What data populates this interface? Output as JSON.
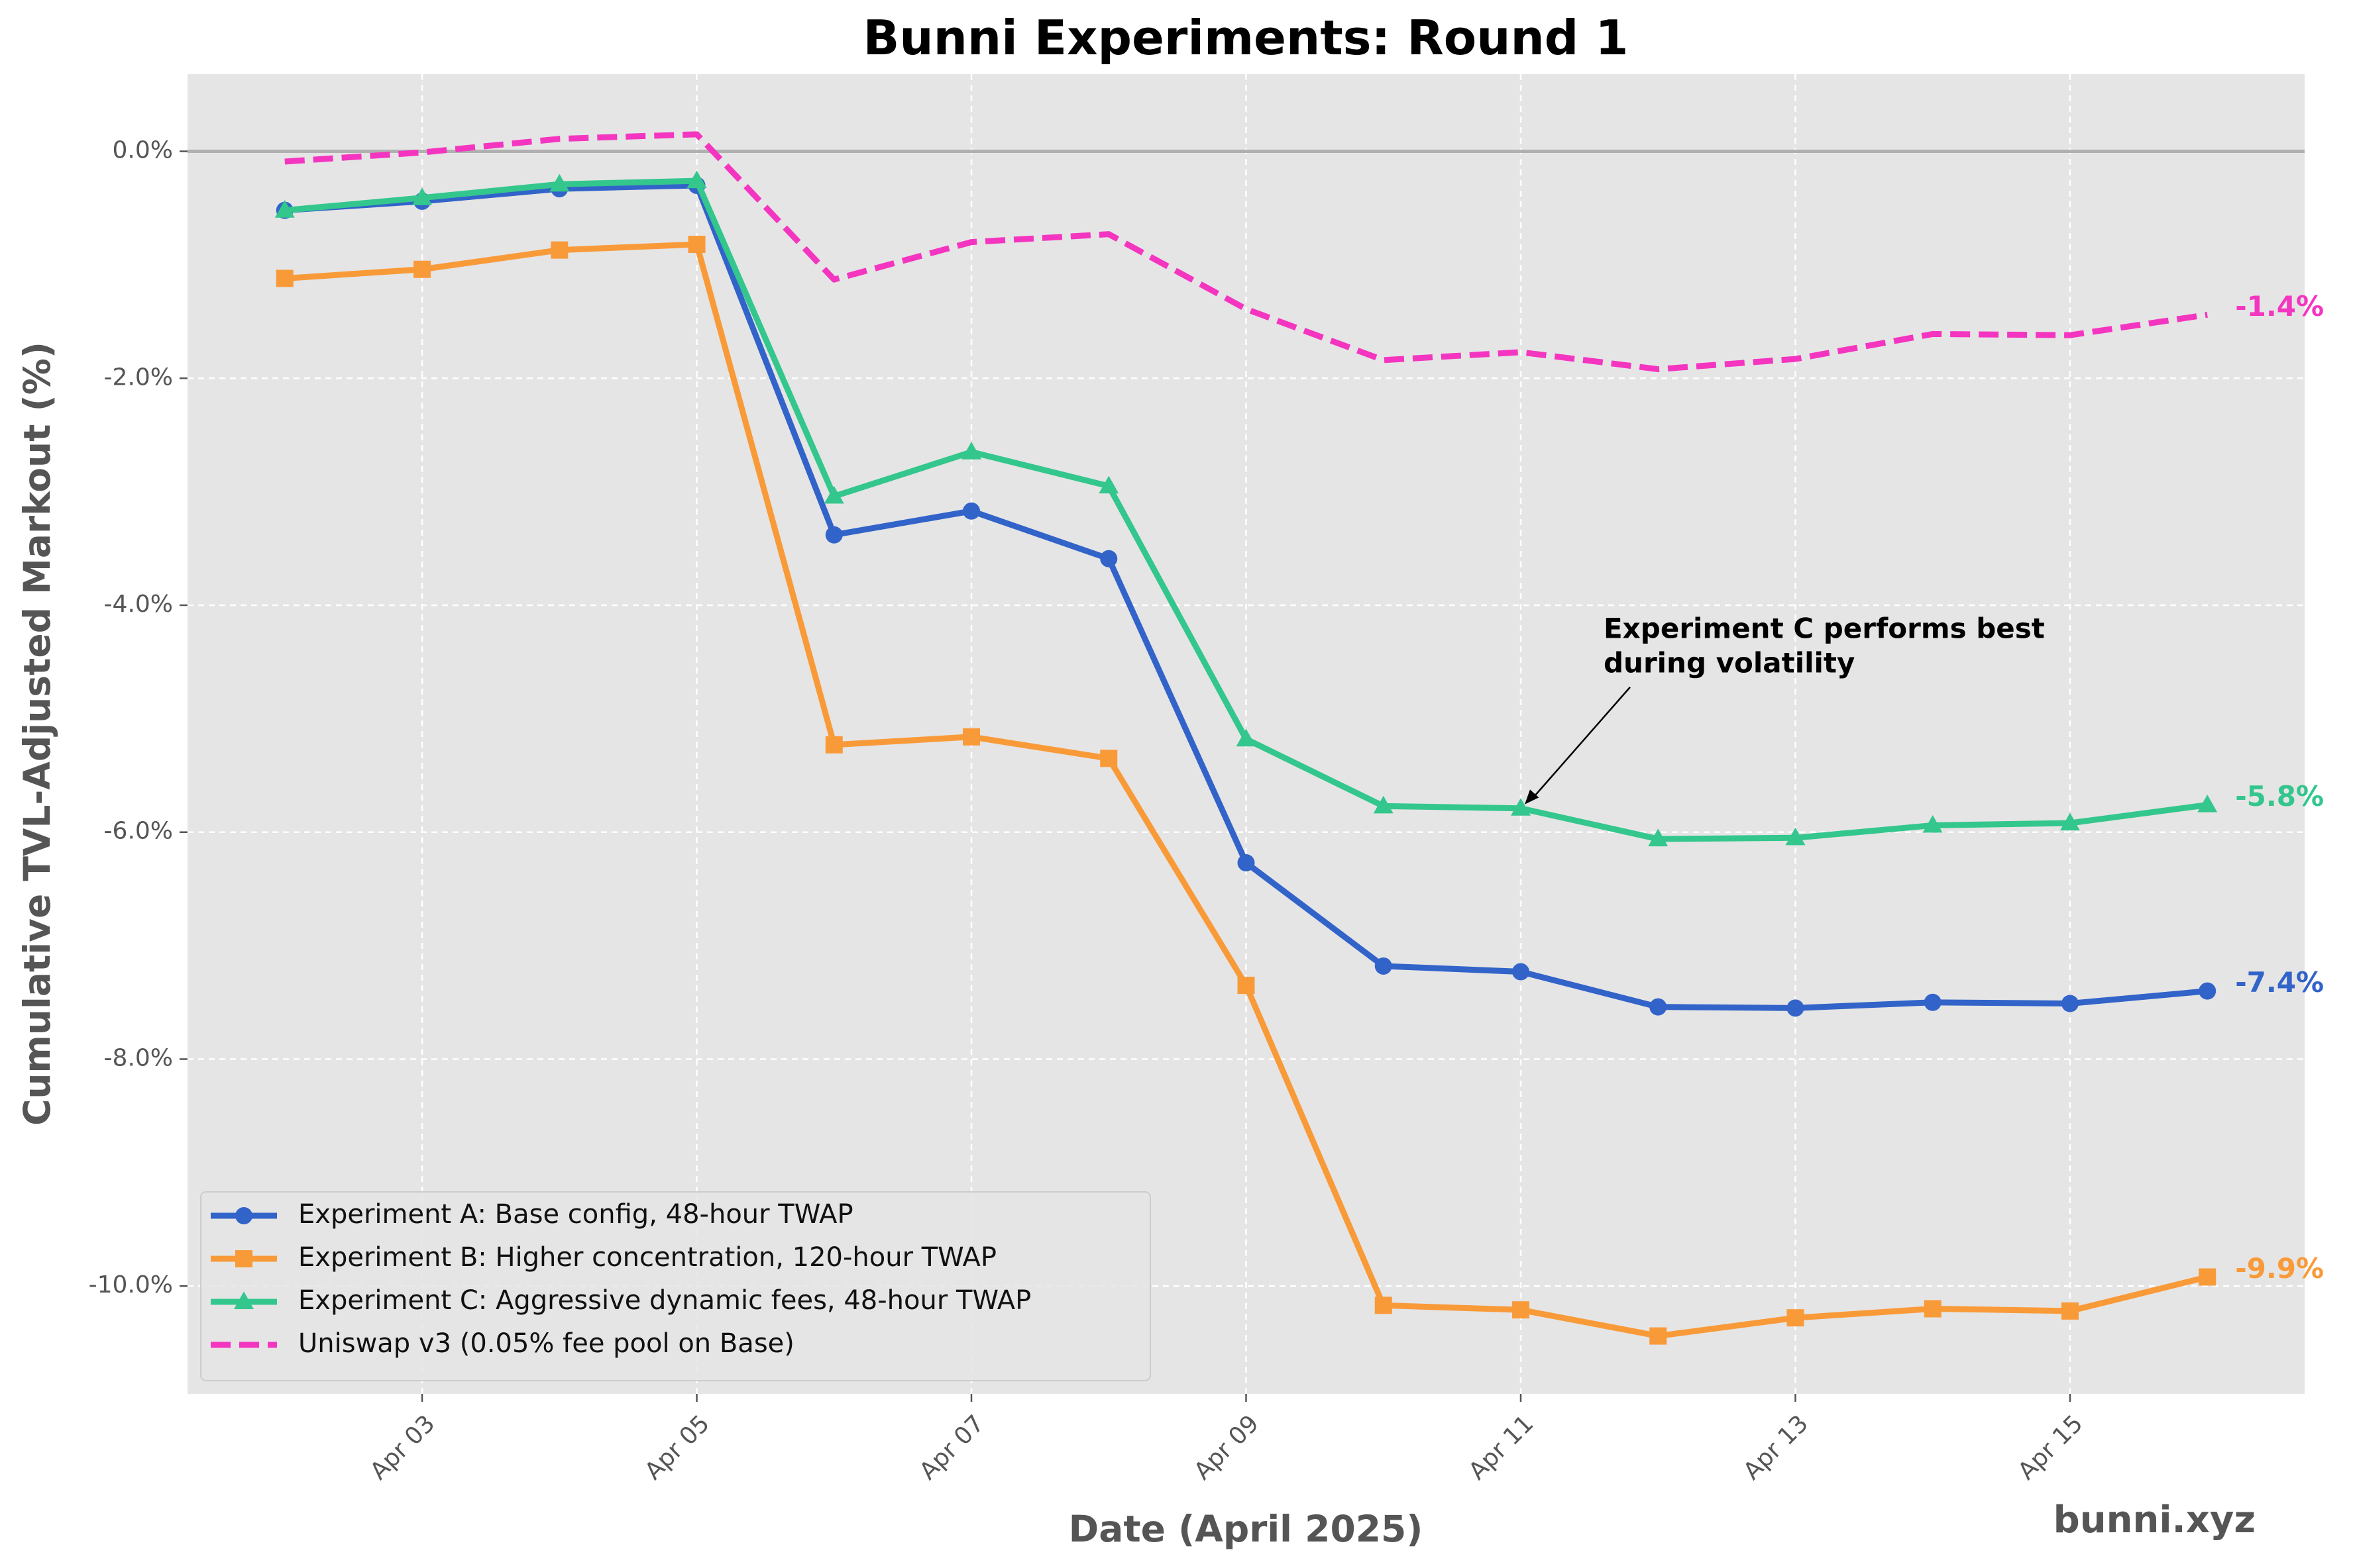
{
  "chart_data": {
    "type": "line",
    "title": "Bunni Experiments: Round 1",
    "xlabel": "Date (April 2025)",
    "ylabel": "Cumulative TVL-Adjusted Markout (%)",
    "x": [
      "2025-04-02",
      "2025-04-03",
      "2025-04-04",
      "2025-04-05",
      "2025-04-06",
      "2025-04-07",
      "2025-04-08",
      "2025-04-09",
      "2025-04-10",
      "2025-04-11",
      "2025-04-12",
      "2025-04-13",
      "2025-04-14",
      "2025-04-15",
      "2025-04-16"
    ],
    "x_ticks": [
      "Apr 03",
      "Apr 05",
      "Apr 07",
      "Apr 09",
      "Apr 11",
      "Apr 13",
      "Apr 15"
    ],
    "x_tick_dates": [
      "2025-04-03",
      "2025-04-05",
      "2025-04-07",
      "2025-04-09",
      "2025-04-11",
      "2025-04-13",
      "2025-04-15"
    ],
    "xlim": [
      "2025-04-01T07:00",
      "2025-04-16T17:00"
    ],
    "y_ticks": [
      0,
      -2,
      -4,
      -6,
      -8,
      -10
    ],
    "y_tick_labels": [
      "0.0%",
      "-2.0%",
      "-4.0%",
      "-6.0%",
      "-8.0%",
      "-10.0%"
    ],
    "ylim": [
      -10.95,
      0.68
    ],
    "grid": true,
    "background": "#e5e5e5",
    "zero_line_color": "#b0b0b0",
    "legend_position": "lower-left",
    "series": [
      {
        "name": "Experiment A: Base config, 48-hour TWAP",
        "color": "#3263c9",
        "marker": "circle",
        "dash": "solid",
        "values": [
          -0.52,
          -0.44,
          -0.33,
          -0.3,
          -3.38,
          -3.17,
          -3.59,
          -6.27,
          -7.18,
          -7.23,
          -7.54,
          -7.55,
          -7.5,
          -7.51,
          -7.4
        ],
        "end_label": "-7.4%"
      },
      {
        "name": "Experiment B: Higher concentration, 120-hour TWAP",
        "color": "#f99a39",
        "marker": "square",
        "dash": "solid",
        "values": [
          -1.12,
          -1.04,
          -0.87,
          -0.82,
          -5.23,
          -5.16,
          -5.35,
          -7.35,
          -10.17,
          -10.21,
          -10.44,
          -10.28,
          -10.2,
          -10.22,
          -9.92
        ],
        "end_label": "-9.9%"
      },
      {
        "name": "Experiment C: Aggressive dynamic fees, 48-hour TWAP",
        "color": "#33c68d",
        "marker": "triangle",
        "dash": "solid",
        "values": [
          -0.52,
          -0.41,
          -0.29,
          -0.26,
          -3.04,
          -2.65,
          -2.95,
          -5.18,
          -5.77,
          -5.79,
          -6.06,
          -6.05,
          -5.94,
          -5.92,
          -5.76
        ],
        "end_label": "-5.8%"
      },
      {
        "name": "Uniswap v3 (0.05% fee pool on Base)",
        "color": "#f435c0",
        "marker": "none",
        "dash": "dashed",
        "values": [
          -0.09,
          -0.01,
          0.11,
          0.15,
          -1.13,
          -0.8,
          -0.73,
          -1.39,
          -1.84,
          -1.77,
          -1.92,
          -1.83,
          -1.61,
          -1.62,
          -1.44
        ],
        "end_label": "-1.4%"
      }
    ],
    "annotation": {
      "lines": [
        "Experiment C performs best",
        "during volatility"
      ],
      "target_x": "2025-04-11",
      "target_y": -5.79
    }
  },
  "watermark": "bunni.xyz"
}
